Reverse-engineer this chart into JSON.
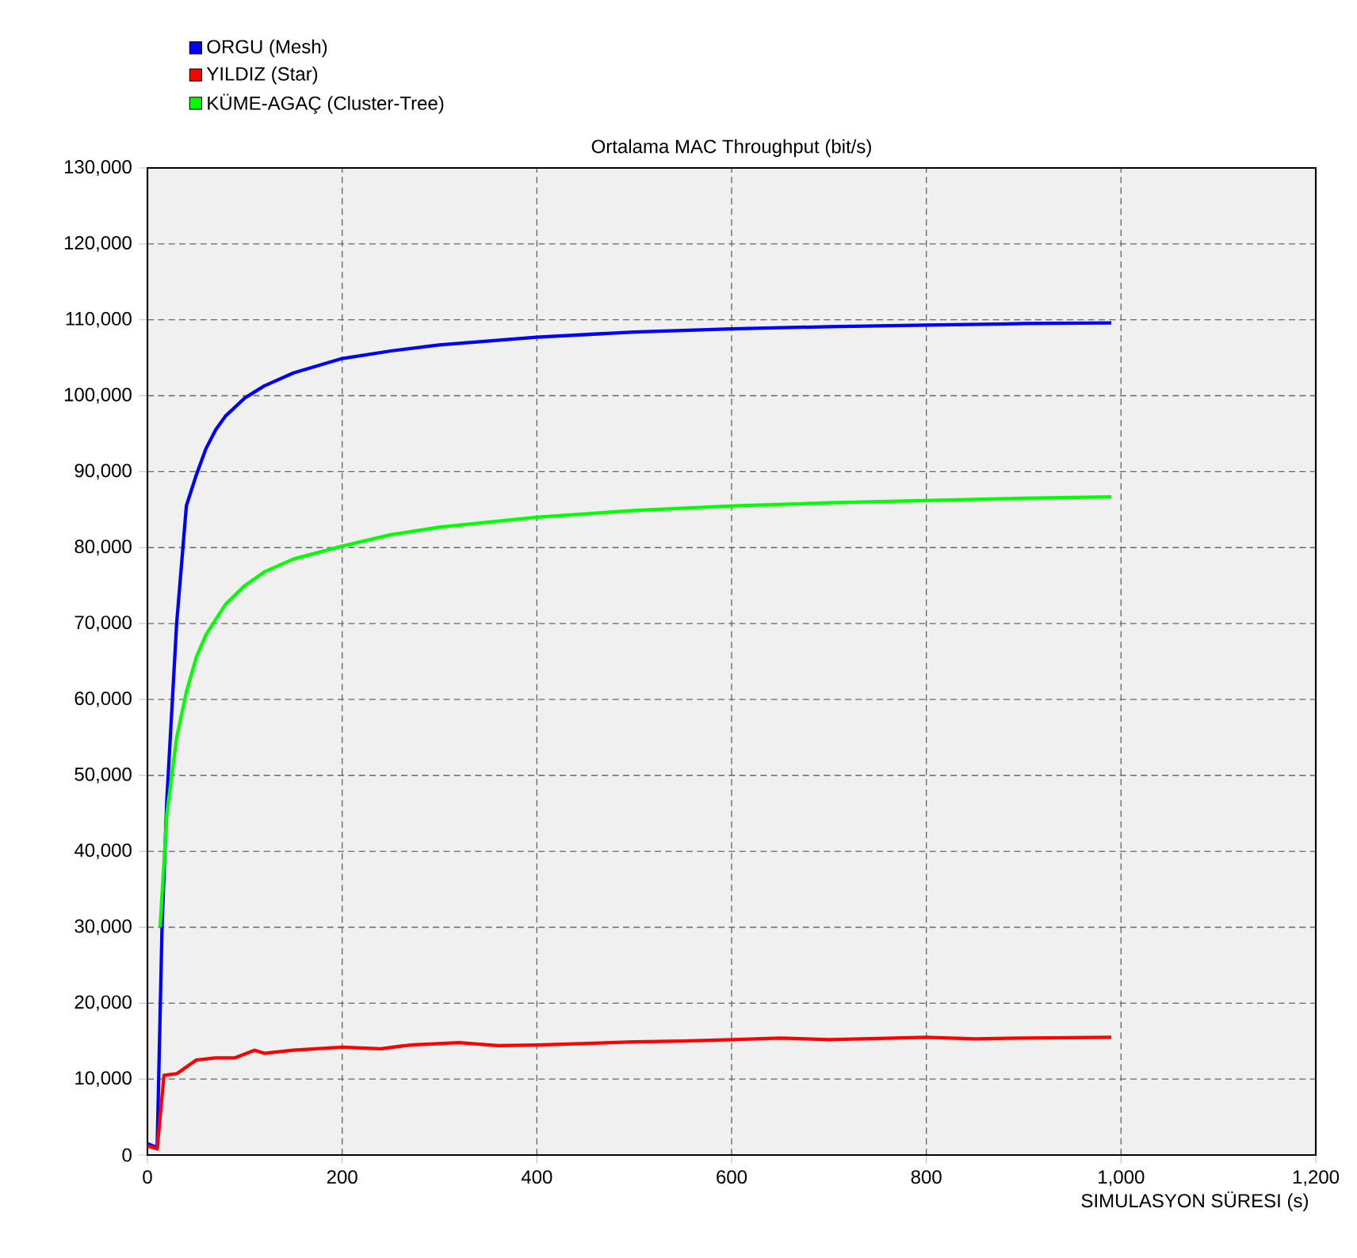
{
  "chart_data": {
    "type": "line",
    "title": "Ortalama MAC Throughput (bit/s)",
    "xlabel": "SIMULASYON SÜRESI (s)",
    "xlim": [
      0,
      1200
    ],
    "xticks": [
      0,
      200,
      400,
      600,
      800,
      {
        "value": 1000,
        "label": "1,000"
      },
      {
        "value": 1200,
        "label": "1,200"
      }
    ],
    "ylim": [
      0,
      130000
    ],
    "yticks": [
      0,
      {
        "value": 10000,
        "label": "10,000"
      },
      {
        "value": 20000,
        "label": "20,000"
      },
      {
        "value": 30000,
        "label": "30,000"
      },
      {
        "value": 40000,
        "label": "40,000"
      },
      {
        "value": 50000,
        "label": "50,000"
      },
      {
        "value": 60000,
        "label": "60,000"
      },
      {
        "value": 70000,
        "label": "70,000"
      },
      {
        "value": 80000,
        "label": "80,000"
      },
      {
        "value": 90000,
        "label": "90,000"
      },
      {
        "value": 100000,
        "label": "100,000"
      },
      {
        "value": 110000,
        "label": "110,000"
      },
      {
        "value": 120000,
        "label": "120,000"
      },
      {
        "value": 130000,
        "label": "130,000"
      }
    ],
    "grid": true,
    "legend": "top left",
    "marker": "none",
    "line_style": "solid",
    "series": [
      {
        "name": "ORGU (Mesh)",
        "color": "#0000ff",
        "x": [
          0,
          10,
          15,
          20,
          30,
          40,
          50,
          60,
          70,
          80,
          100,
          120,
          150,
          200,
          250,
          300,
          400,
          500,
          600,
          700,
          800,
          900,
          990
        ],
        "values": [
          1500,
          1000,
          30000,
          47000,
          70000,
          85500,
          89500,
          93000,
          95500,
          97300,
          99700,
          101300,
          103000,
          104900,
          105900,
          106700,
          107700,
          108400,
          108800,
          109100,
          109300,
          109500,
          109600
        ]
      },
      {
        "name": "YILDIZ (Star)",
        "color": "#ff0000",
        "x": [
          0,
          10,
          17,
          30,
          50,
          70,
          90,
          110,
          120,
          150,
          200,
          240,
          270,
          320,
          360,
          400,
          450,
          500,
          550,
          600,
          650,
          700,
          800,
          850,
          900,
          990
        ],
        "values": [
          1200,
          800,
          10500,
          10700,
          12500,
          12800,
          12800,
          13800,
          13400,
          13800,
          14200,
          14000,
          14500,
          14800,
          14400,
          14500,
          14700,
          14900,
          15000,
          15200,
          15400,
          15200,
          15500,
          15300,
          15400,
          15500
        ]
      },
      {
        "name": "KÜME-AGAÇ (Cluster-Tree)",
        "color": "#00ff00",
        "x": [
          13,
          20,
          30,
          40,
          50,
          60,
          80,
          100,
          120,
          150,
          200,
          250,
          300,
          400,
          500,
          600,
          700,
          800,
          900,
          990
        ],
        "values": [
          30000,
          45000,
          55000,
          61000,
          65500,
          68500,
          72500,
          75000,
          76800,
          78500,
          80200,
          81700,
          82700,
          84000,
          84900,
          85500,
          85900,
          86200,
          86500,
          86700
        ]
      }
    ]
  }
}
